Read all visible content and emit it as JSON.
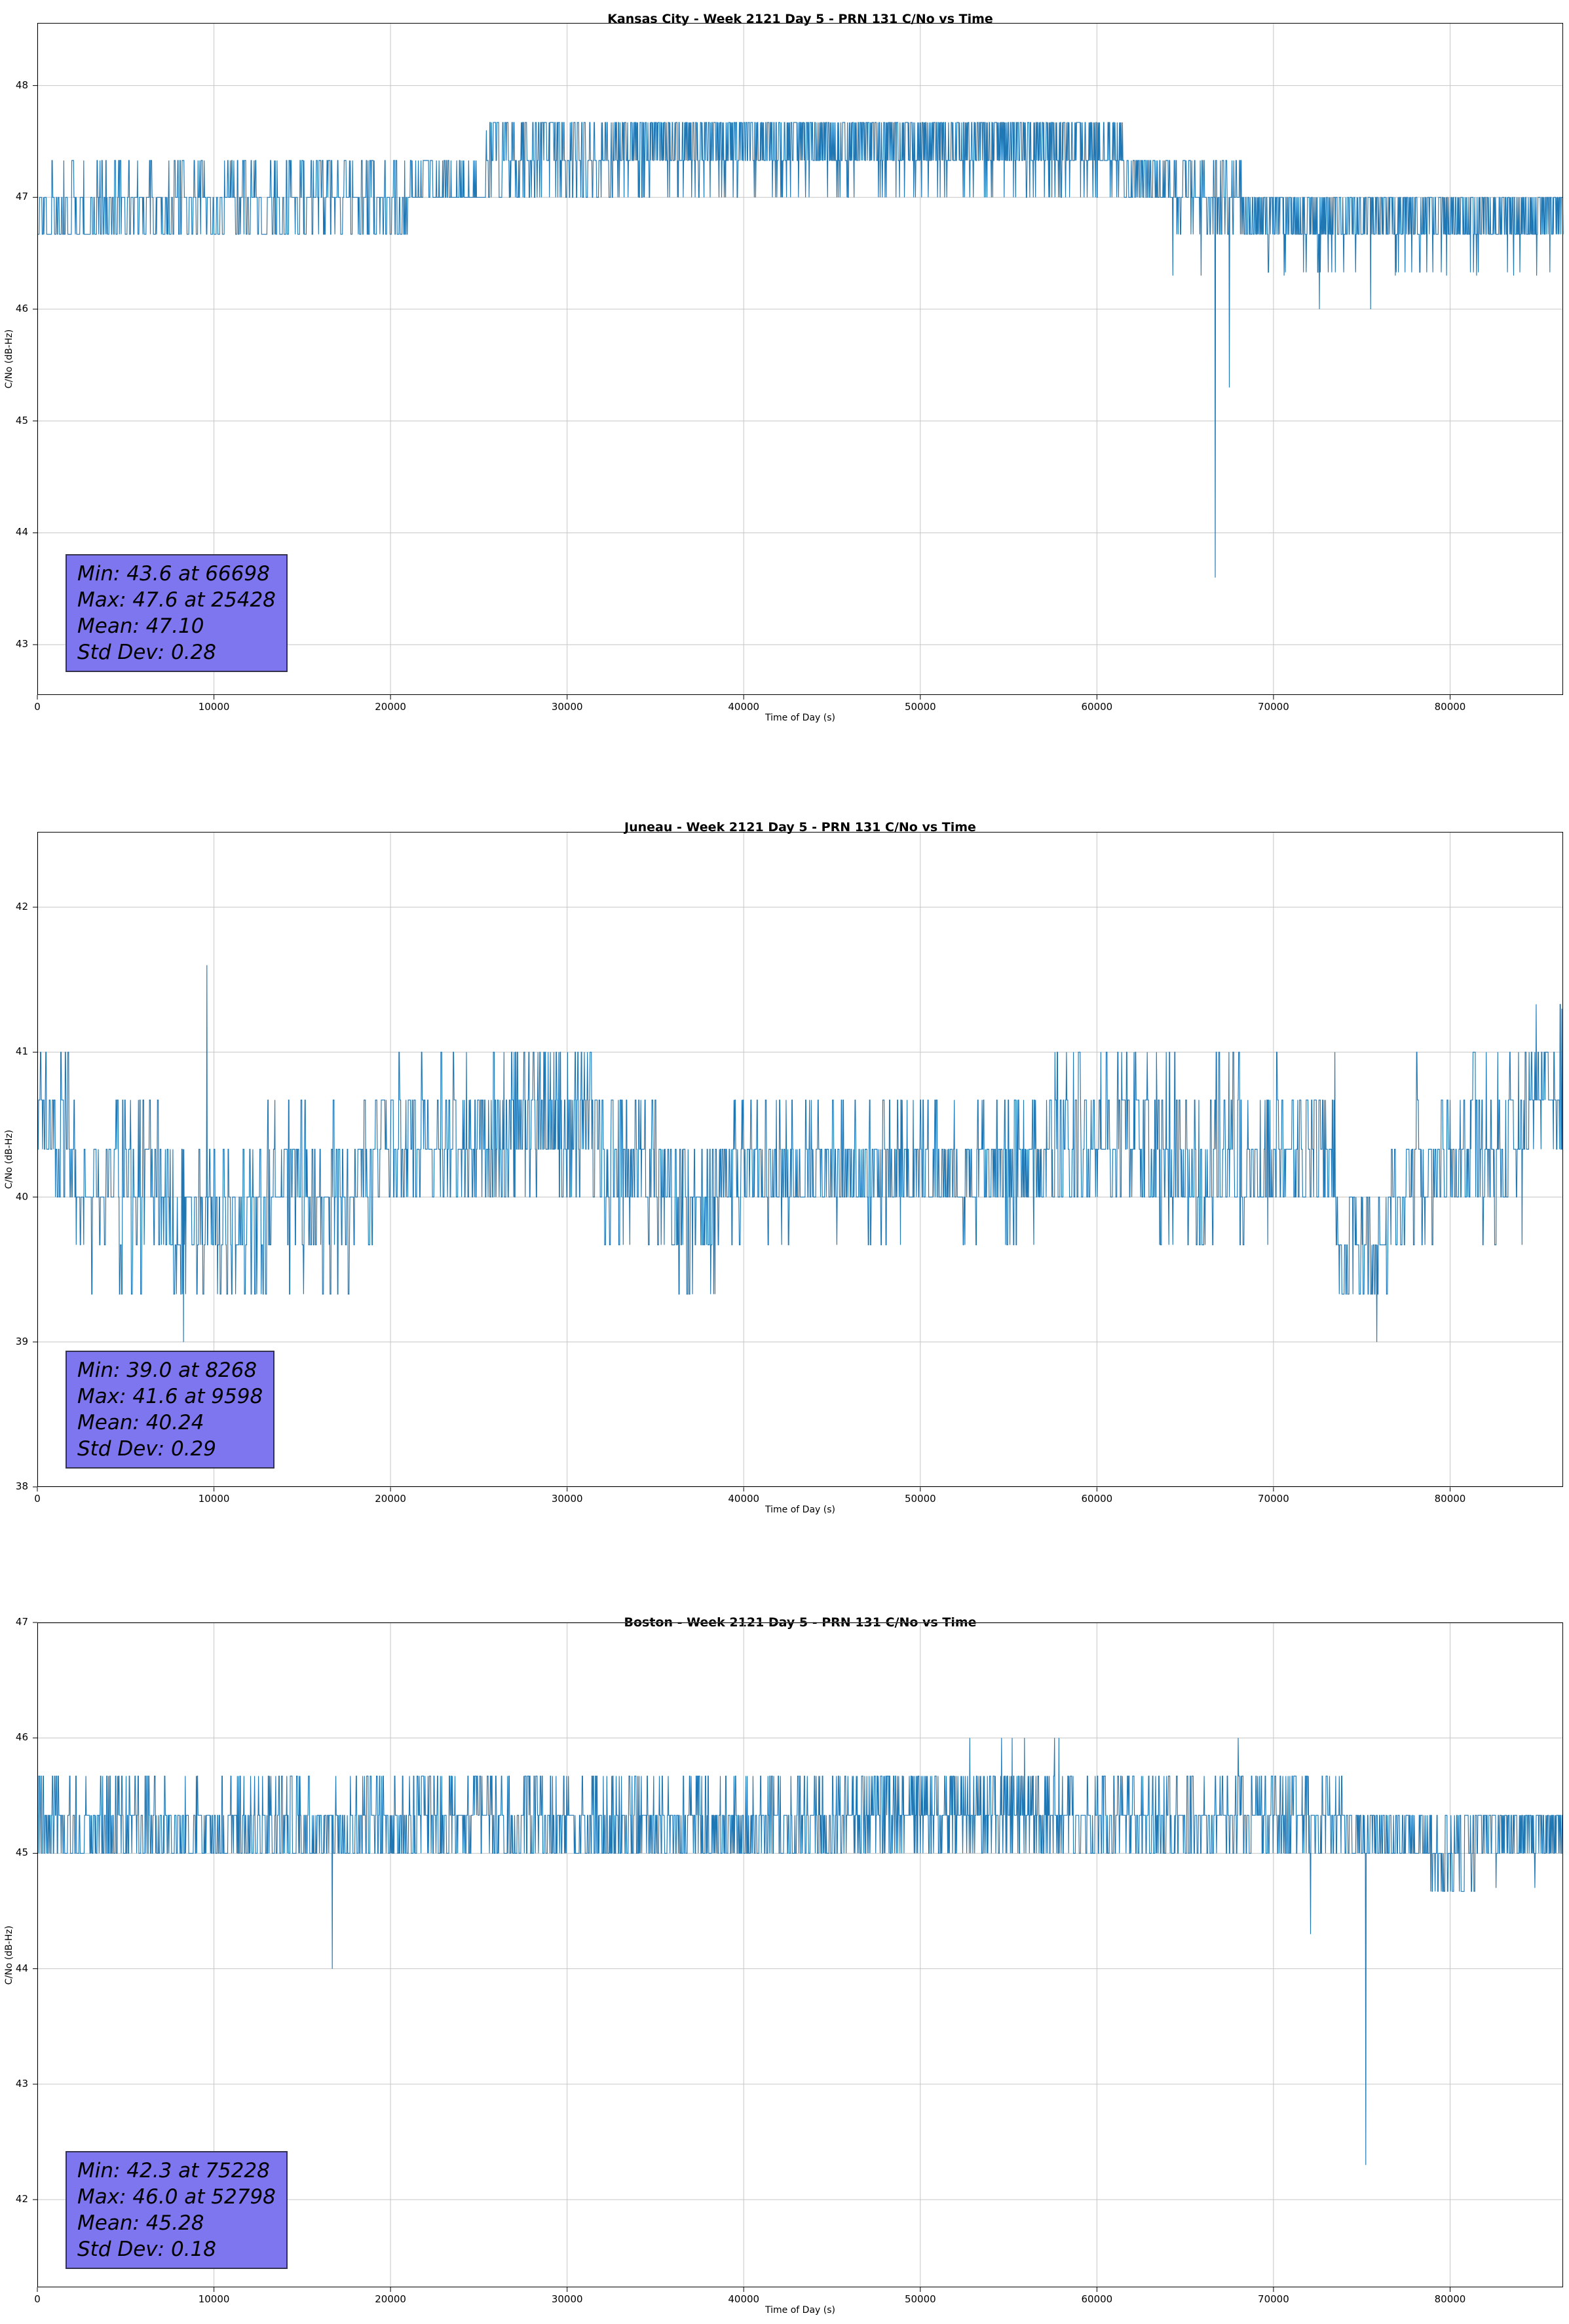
{
  "figure": {
    "background": "#ffffff",
    "series_color": "#1f77b4",
    "grid_color": "#c6c6c6"
  },
  "chart_data": [
    {
      "type": "line",
      "title": "Kansas City - Week 2121 Day 5 - PRN 131 C/No vs Time",
      "xlabel": "Time of Day (s)",
      "ylabel": "C/No (dB-Hz)",
      "xlim": [
        0,
        86400
      ],
      "ylim": [
        42.55,
        48.56
      ],
      "xticks": [
        0,
        10000,
        20000,
        30000,
        40000,
        50000,
        60000,
        70000,
        80000
      ],
      "yticks": [
        43,
        44,
        45,
        46,
        47,
        48
      ],
      "grid": true,
      "line_color": "#1f77b4",
      "box_color": "#7e76ee",
      "stats": {
        "min": "Min: 43.6 at 66698",
        "max": "Max: 47.6 at 25428",
        "mean": "Mean: 47.10",
        "std": "Std Dev: 0.28",
        "min_value": 43.6,
        "min_time": 66698,
        "max_value": 47.6,
        "max_time": 25428,
        "mean_value": 47.1,
        "std_value": 0.28
      },
      "segments": [
        {
          "t0": 0,
          "t1": 21000,
          "levels": [
            46.67,
            47.0,
            47.33
          ],
          "weights": [
            0.38,
            0.44,
            0.18
          ],
          "runlen": 3
        },
        {
          "t0": 21000,
          "t1": 25400,
          "levels": [
            47.0,
            47.33
          ],
          "weights": [
            0.72,
            0.28
          ],
          "runlen": 2
        },
        {
          "t0": 25400,
          "t1": 33000,
          "levels": [
            47.0,
            47.33,
            47.67
          ],
          "weights": [
            0.28,
            0.42,
            0.3
          ],
          "runlen": 2
        },
        {
          "t0": 33000,
          "t1": 61500,
          "levels": [
            47.0,
            47.33,
            47.67
          ],
          "weights": [
            0.1,
            0.42,
            0.48
          ],
          "runlen": 1
        },
        {
          "t0": 61500,
          "t1": 64200,
          "levels": [
            47.0,
            47.33
          ],
          "weights": [
            0.5,
            0.5
          ],
          "runlen": 2
        },
        {
          "t0": 64200,
          "t1": 68200,
          "levels": [
            46.67,
            47.0,
            47.33
          ],
          "weights": [
            0.22,
            0.52,
            0.26
          ],
          "runlen": 2
        },
        {
          "t0": 68200,
          "t1": 86400,
          "levels": [
            46.33,
            46.67,
            47.0
          ],
          "weights": [
            0.04,
            0.44,
            0.52
          ],
          "runlen": 1
        }
      ],
      "events": [
        {
          "t": 25428,
          "v": 47.6
        },
        {
          "t": 64300,
          "v": 46.3
        },
        {
          "t": 65900,
          "v": 46.3
        },
        {
          "t": 66698,
          "v": 43.6
        },
        {
          "t": 67500,
          "v": 45.3
        },
        {
          "t": 70600,
          "v": 46.3
        },
        {
          "t": 72600,
          "v": 46.0
        },
        {
          "t": 75500,
          "v": 46.0
        },
        {
          "t": 76900,
          "v": 46.3
        },
        {
          "t": 79800,
          "v": 46.3
        },
        {
          "t": 81500,
          "v": 46.3
        },
        {
          "t": 83600,
          "v": 46.3
        },
        {
          "t": 84900,
          "v": 46.3
        }
      ]
    },
    {
      "type": "line",
      "title": "Juneau - Week 2121 Day 5 - PRN 131 C/No vs Time",
      "xlabel": "Time of Day (s)",
      "ylabel": "C/No (dB-Hz)",
      "xlim": [
        0,
        86400
      ],
      "ylim": [
        38.0,
        42.52
      ],
      "xticks": [
        0,
        10000,
        20000,
        30000,
        40000,
        50000,
        60000,
        70000,
        80000
      ],
      "yticks": [
        38,
        39,
        40,
        41,
        42
      ],
      "grid": true,
      "line_color": "#1f77b4",
      "box_color": "#7e76ee",
      "stats": {
        "min": "Min: 39.0 at 8268",
        "max": "Max: 41.6 at 9598",
        "mean": "Mean: 40.24",
        "std": "Std Dev: 0.29",
        "min_value": 39.0,
        "min_time": 8268,
        "max_value": 41.6,
        "max_time": 9598,
        "mean_value": 40.24,
        "std_value": 0.29
      },
      "segments": [
        {
          "t0": 0,
          "t1": 2200,
          "levels": [
            40.0,
            40.33,
            40.67,
            41.0
          ],
          "weights": [
            0.15,
            0.35,
            0.3,
            0.2
          ],
          "runlen": 3
        },
        {
          "t0": 2200,
          "t1": 7200,
          "levels": [
            39.33,
            39.67,
            40.0,
            40.33,
            40.67
          ],
          "weights": [
            0.05,
            0.2,
            0.4,
            0.25,
            0.1
          ],
          "runlen": 3
        },
        {
          "t0": 7200,
          "t1": 13000,
          "levels": [
            39.33,
            39.67,
            40.0,
            40.33
          ],
          "weights": [
            0.15,
            0.3,
            0.4,
            0.15
          ],
          "runlen": 3
        },
        {
          "t0": 13000,
          "t1": 19000,
          "levels": [
            39.33,
            39.67,
            40.0,
            40.33,
            40.67
          ],
          "weights": [
            0.06,
            0.22,
            0.42,
            0.22,
            0.08
          ],
          "runlen": 3
        },
        {
          "t0": 19000,
          "t1": 26000,
          "levels": [
            40.0,
            40.33,
            40.67,
            41.0
          ],
          "weights": [
            0.25,
            0.4,
            0.25,
            0.1
          ],
          "runlen": 3
        },
        {
          "t0": 26000,
          "t1": 31500,
          "levels": [
            40.0,
            40.33,
            40.67,
            41.0
          ],
          "weights": [
            0.15,
            0.35,
            0.3,
            0.2
          ],
          "runlen": 2
        },
        {
          "t0": 31500,
          "t1": 35500,
          "levels": [
            39.67,
            40.0,
            40.33,
            40.67
          ],
          "weights": [
            0.08,
            0.37,
            0.35,
            0.2
          ],
          "runlen": 3
        },
        {
          "t0": 35500,
          "t1": 38500,
          "levels": [
            39.33,
            39.67,
            40.0,
            40.33
          ],
          "weights": [
            0.12,
            0.33,
            0.4,
            0.15
          ],
          "runlen": 3
        },
        {
          "t0": 38500,
          "t1": 44000,
          "levels": [
            39.67,
            40.0,
            40.33,
            40.67
          ],
          "weights": [
            0.08,
            0.42,
            0.4,
            0.1
          ],
          "runlen": 2
        },
        {
          "t0": 44000,
          "t1": 57000,
          "levels": [
            39.67,
            40.0,
            40.33,
            40.67
          ],
          "weights": [
            0.05,
            0.45,
            0.42,
            0.08
          ],
          "runlen": 2
        },
        {
          "t0": 57000,
          "t1": 63000,
          "levels": [
            40.0,
            40.33,
            40.67,
            41.0
          ],
          "weights": [
            0.22,
            0.36,
            0.27,
            0.15
          ],
          "runlen": 3
        },
        {
          "t0": 63000,
          "t1": 70000,
          "levels": [
            39.67,
            40.0,
            40.33,
            40.67,
            41.0
          ],
          "weights": [
            0.12,
            0.33,
            0.33,
            0.17,
            0.05
          ],
          "runlen": 3
        },
        {
          "t0": 70000,
          "t1": 73500,
          "levels": [
            40.0,
            40.33,
            40.67,
            41.0
          ],
          "weights": [
            0.3,
            0.38,
            0.24,
            0.08
          ],
          "runlen": 3
        },
        {
          "t0": 73500,
          "t1": 76500,
          "levels": [
            39.33,
            39.67,
            40.0
          ],
          "weights": [
            0.3,
            0.45,
            0.25
          ],
          "runlen": 3
        },
        {
          "t0": 76500,
          "t1": 78000,
          "levels": [
            39.67,
            40.0,
            40.33
          ],
          "weights": [
            0.25,
            0.45,
            0.3
          ],
          "runlen": 3
        },
        {
          "t0": 78000,
          "t1": 84500,
          "levels": [
            39.67,
            40.0,
            40.33,
            40.67,
            41.0
          ],
          "weights": [
            0.07,
            0.33,
            0.35,
            0.18,
            0.07
          ],
          "runlen": 3
        },
        {
          "t0": 84500,
          "t1": 86400,
          "levels": [
            40.33,
            40.67,
            41.0,
            41.33
          ],
          "weights": [
            0.2,
            0.42,
            0.3,
            0.08
          ],
          "runlen": 2
        }
      ],
      "events": [
        {
          "t": 8268,
          "v": 39.0
        },
        {
          "t": 9598,
          "v": 41.6
        },
        {
          "t": 75850,
          "v": 39.0
        },
        {
          "t": 86320,
          "v": 41.3
        }
      ]
    },
    {
      "type": "line",
      "title": "Boston - Week 2121 Day 5 - PRN 131 C/No vs Time",
      "xlabel": "Time of Day (s)",
      "ylabel": "C/No (dB-Hz)",
      "xlim": [
        0,
        86400
      ],
      "ylim": [
        41.24,
        47.0
      ],
      "xticks": [
        0,
        10000,
        20000,
        30000,
        40000,
        50000,
        60000,
        70000,
        80000
      ],
      "yticks": [
        42,
        43,
        44,
        45,
        46,
        47
      ],
      "grid": true,
      "line_color": "#1f77b4",
      "box_color": "#7e76ee",
      "stats": {
        "min": "Min: 42.3 at 75228",
        "max": "Max: 46.0 at 52798",
        "mean": "Mean: 45.28",
        "std": "Std Dev: 0.18",
        "min_value": 42.3,
        "min_time": 75228,
        "max_value": 46.0,
        "max_time": 52798,
        "mean_value": 45.28,
        "std_value": 0.18
      },
      "segments": [
        {
          "t0": 0,
          "t1": 20000,
          "levels": [
            45.0,
            45.33,
            45.67
          ],
          "weights": [
            0.42,
            0.42,
            0.16
          ],
          "runlen": 2
        },
        {
          "t0": 20000,
          "t1": 26000,
          "levels": [
            45.0,
            45.33,
            45.67
          ],
          "weights": [
            0.3,
            0.45,
            0.25
          ],
          "runlen": 2
        },
        {
          "t0": 26000,
          "t1": 45700,
          "levels": [
            45.0,
            45.33,
            45.67
          ],
          "weights": [
            0.42,
            0.42,
            0.16
          ],
          "runlen": 2
        },
        {
          "t0": 45700,
          "t1": 57800,
          "levels": [
            45.0,
            45.33,
            45.67
          ],
          "weights": [
            0.18,
            0.5,
            0.32
          ],
          "runlen": 1
        },
        {
          "t0": 57800,
          "t1": 74000,
          "levels": [
            45.0,
            45.33,
            45.67
          ],
          "weights": [
            0.3,
            0.5,
            0.2
          ],
          "runlen": 2
        },
        {
          "t0": 74000,
          "t1": 78500,
          "levels": [
            45.0,
            45.33
          ],
          "weights": [
            0.5,
            0.5
          ],
          "runlen": 2
        },
        {
          "t0": 78500,
          "t1": 81500,
          "levels": [
            44.67,
            45.0,
            45.33
          ],
          "weights": [
            0.18,
            0.42,
            0.4
          ],
          "runlen": 2
        },
        {
          "t0": 81500,
          "t1": 86400,
          "levels": [
            45.0,
            45.33
          ],
          "weights": [
            0.35,
            0.65
          ],
          "runlen": 1
        }
      ],
      "events": [
        {
          "t": 16700,
          "v": 44.0
        },
        {
          "t": 52798,
          "v": 46.0
        },
        {
          "t": 54600,
          "v": 46.0
        },
        {
          "t": 55200,
          "v": 46.0
        },
        {
          "t": 55900,
          "v": 46.0
        },
        {
          "t": 57600,
          "v": 46.0
        },
        {
          "t": 57850,
          "v": 46.0
        },
        {
          "t": 68000,
          "v": 46.0
        },
        {
          "t": 72100,
          "v": 44.3
        },
        {
          "t": 75228,
          "v": 42.3
        },
        {
          "t": 82600,
          "v": 44.7
        },
        {
          "t": 84800,
          "v": 44.7
        }
      ]
    }
  ]
}
